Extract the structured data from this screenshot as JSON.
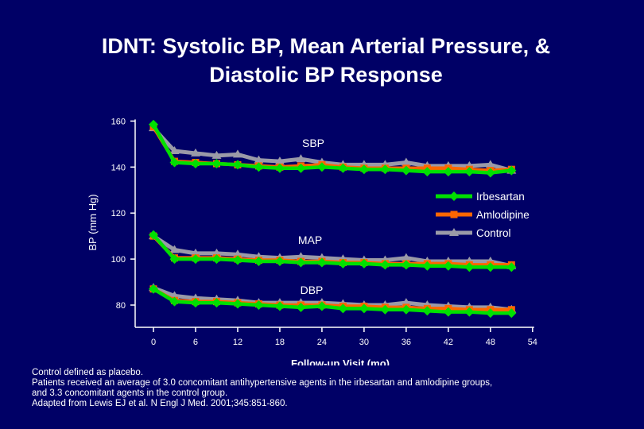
{
  "slide": {
    "title_line1": "IDNT: Systolic BP, Mean Arterial Pressure, &",
    "title_line2": "Diastolic BP Response",
    "footnotes": [
      "Control defined as placebo.",
      "Patients received an average of 3.0 concomitant antihypertensive agents in the irbesartan and amlodipine groups,",
      "and 3.3 concomitant agents in the control group.",
      "Adapted from Lewis EJ et al. N Engl J Med. 2001;345:851-860."
    ]
  },
  "colors": {
    "background": "#000066",
    "Irbesartan": "#00e000",
    "Amlodipine": "#ff6600",
    "Control": "#9a9aa8",
    "text": "#ffffff"
  },
  "chart_data": {
    "type": "line",
    "xlabel": "Follow-up Visit (mo)",
    "ylabel": "BP (mm Hg)",
    "xlim": [
      0,
      54
    ],
    "ylim": [
      80,
      160
    ],
    "xticks": [
      0,
      6,
      12,
      18,
      24,
      30,
      36,
      42,
      48,
      54
    ],
    "yticks": [
      80,
      100,
      120,
      140,
      160
    ],
    "annotations": [
      "SBP",
      "MAP",
      "DBP"
    ],
    "legend": {
      "placement": "right",
      "entries": [
        "Irbesartan",
        "Amlodipine",
        "Control"
      ]
    },
    "x": [
      0,
      3,
      6,
      9,
      12,
      15,
      18,
      21,
      24,
      27,
      30,
      33,
      36,
      39,
      42,
      45,
      48,
      51
    ],
    "groups": [
      {
        "measure": "SBP",
        "series": [
          {
            "name": "Irbesartan",
            "values": [
              158.5,
              142,
              141.5,
              141.5,
              141,
              140,
              139.5,
              139.5,
              140,
              139.5,
              139,
              139,
              138.5,
              138,
              138,
              138,
              137.5,
              138.5
            ]
          },
          {
            "name": "Amlodipine",
            "values": [
              157.5,
              142.5,
              142,
              141.5,
              141,
              140.5,
              140,
              140.5,
              141,
              140,
              139.5,
              139.5,
              139.5,
              139.5,
              139.5,
              139,
              138.5,
              139
            ]
          },
          {
            "name": "Control",
            "values": [
              157,
              147,
              146,
              145,
              145.5,
              143,
              142.5,
              143.5,
              142,
              141,
              141,
              141,
              142,
              140.5,
              140.5,
              140.5,
              141,
              138.5
            ]
          }
        ]
      },
      {
        "measure": "MAP",
        "series": [
          {
            "name": "Irbesartan",
            "values": [
              110.5,
              100,
              100,
              100,
              99.5,
              99,
              99,
              98.5,
              98.5,
              98,
              98,
              97.5,
              97.5,
              97,
              97,
              96.5,
              96.5,
              96.5
            ]
          },
          {
            "name": "Amlodipine",
            "values": [
              110,
              100.5,
              100.5,
              100.5,
              100,
              99.5,
              99.5,
              99,
              99,
              98.5,
              98.5,
              98,
              98,
              98,
              98,
              97.5,
              97.5,
              97.5
            ]
          },
          {
            "name": "Control",
            "values": [
              110,
              104,
              102.5,
              102.5,
              102,
              101,
              100.5,
              101,
              100.5,
              100,
              99.5,
              99.5,
              100.5,
              99,
              99,
              99,
              99,
              97
            ]
          }
        ]
      },
      {
        "measure": "DBP",
        "series": [
          {
            "name": "Irbesartan",
            "values": [
              87,
              81.5,
              81,
              81,
              80.5,
              80,
              79.5,
              79,
              79.5,
              78.5,
              78.5,
              78,
              78,
              77.5,
              77,
              77,
              76.5,
              76.5
            ]
          },
          {
            "name": "Amlodipine",
            "values": [
              87,
              82,
              81.5,
              81.5,
              81,
              80.5,
              80,
              80,
              80,
              79.5,
              79.5,
              79,
              79,
              78.5,
              78.5,
              78,
              78,
              78
            ]
          },
          {
            "name": "Control",
            "values": [
              87.5,
              84,
              83,
              82.5,
              82,
              81,
              81,
              81,
              81,
              80.5,
              80,
              80,
              81,
              80,
              79.5,
              79,
              79,
              78
            ]
          }
        ]
      }
    ]
  }
}
